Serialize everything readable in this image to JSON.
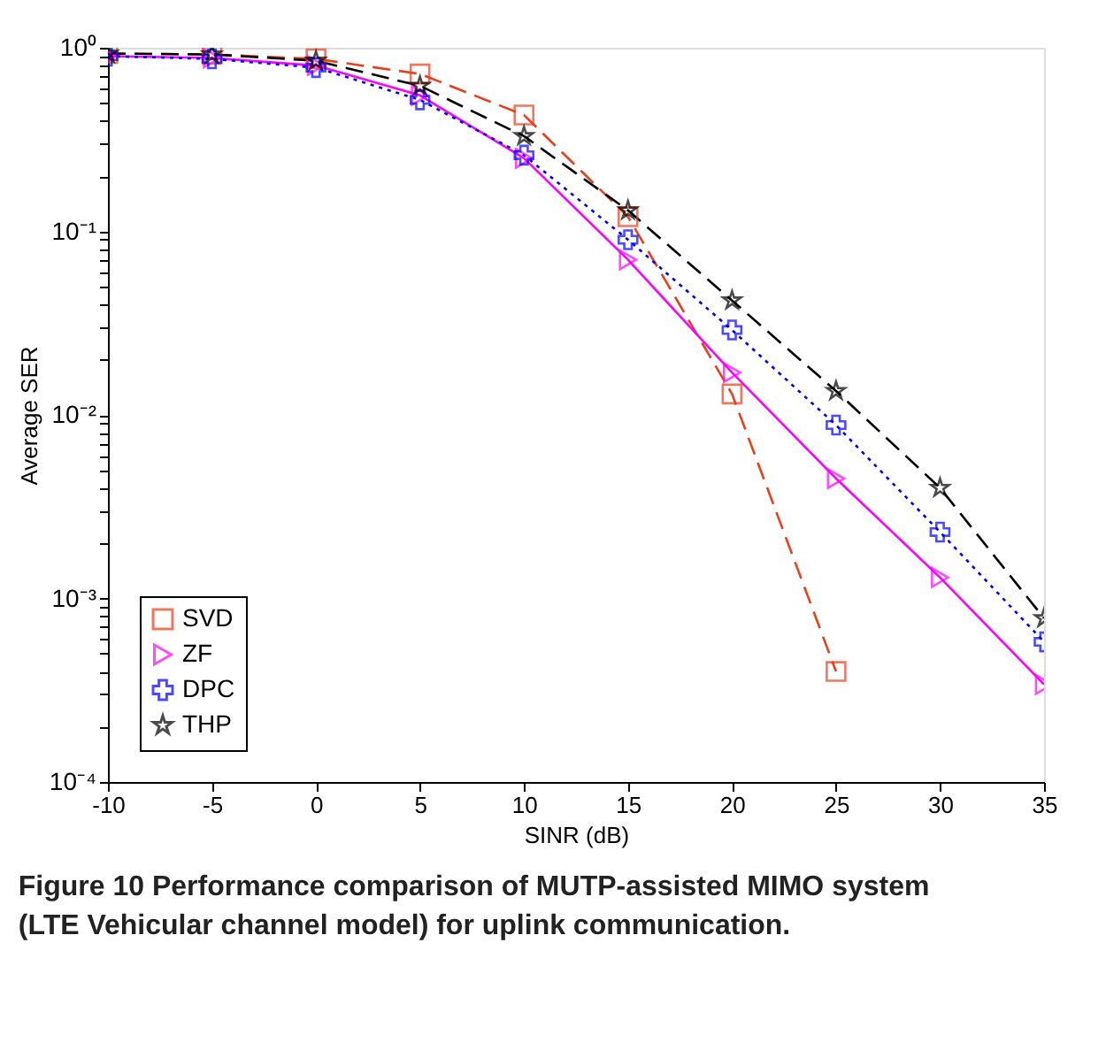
{
  "chart_data": {
    "type": "line",
    "xlabel": "SINR (dB)",
    "ylabel": "Average SER",
    "log": "y",
    "x": [
      -10,
      -5,
      0,
      5,
      10,
      15,
      20,
      25,
      30,
      35
    ],
    "xlim": [
      -10,
      35
    ],
    "xticks": [
      -10,
      -5,
      0,
      5,
      10,
      15,
      20,
      25,
      30,
      35
    ],
    "ylim": [
      0.0001,
      1
    ],
    "yticks": [
      {
        "value": 0.0001,
        "label": "10⁻⁴"
      },
      {
        "value": 0.0002,
        "label": null
      },
      {
        "value": 0.0003,
        "label": null
      },
      {
        "value": 0.0004,
        "label": null
      },
      {
        "value": 0.0005,
        "label": null
      },
      {
        "value": 0.0006,
        "label": null
      },
      {
        "value": 0.0007,
        "label": null
      },
      {
        "value": 0.0008,
        "label": null
      },
      {
        "value": 0.0009,
        "label": null
      },
      {
        "value": 0.001,
        "label": "10⁻³"
      },
      {
        "value": 0.002,
        "label": null
      },
      {
        "value": 0.003,
        "label": null
      },
      {
        "value": 0.004,
        "label": null
      },
      {
        "value": 0.005,
        "label": null
      },
      {
        "value": 0.006,
        "label": null
      },
      {
        "value": 0.007,
        "label": null
      },
      {
        "value": 0.008,
        "label": null
      },
      {
        "value": 0.009,
        "label": null
      },
      {
        "value": 0.01,
        "label": "10⁻²"
      },
      {
        "value": 0.02,
        "label": null
      },
      {
        "value": 0.03,
        "label": null
      },
      {
        "value": 0.04,
        "label": null
      },
      {
        "value": 0.05,
        "label": null
      },
      {
        "value": 0.06,
        "label": null
      },
      {
        "value": 0.07,
        "label": null
      },
      {
        "value": 0.08,
        "label": null
      },
      {
        "value": 0.09,
        "label": null
      },
      {
        "value": 0.1,
        "label": "10⁻¹"
      },
      {
        "value": 0.2,
        "label": null
      },
      {
        "value": 0.3,
        "label": null
      },
      {
        "value": 0.4,
        "label": null
      },
      {
        "value": 0.5,
        "label": null
      },
      {
        "value": 0.6,
        "label": null
      },
      {
        "value": 0.7,
        "label": null
      },
      {
        "value": 0.8,
        "label": null
      },
      {
        "value": 0.9,
        "label": null
      },
      {
        "value": 1,
        "label": "10⁰"
      }
    ],
    "grid": false,
    "legend": "bottom left",
    "series": [
      {
        "name": "SVD",
        "color": "#e8401c",
        "marker": "square",
        "line_style": "dashed",
        "values": [
          0.93,
          0.92,
          0.87,
          0.72,
          0.43,
          0.12,
          0.013,
          0.0004,
          null,
          null
        ]
      },
      {
        "name": "ZF",
        "color": "#ff00ff",
        "marker": "triangle",
        "line_style": "solid",
        "values": [
          0.9,
          0.88,
          0.8,
          0.55,
          0.25,
          0.07,
          0.017,
          0.0045,
          0.0013,
          0.00034
        ]
      },
      {
        "name": "DPC",
        "color": "#0000ff",
        "marker": "cross",
        "line_style": "dotted",
        "values": [
          0.9,
          0.87,
          0.78,
          0.52,
          0.26,
          0.09,
          0.029,
          0.0088,
          0.0023,
          0.00058
        ]
      },
      {
        "name": "THP",
        "color": "#000000",
        "marker": "star",
        "line_style": "dashed",
        "values": [
          0.93,
          0.92,
          0.85,
          0.62,
          0.33,
          0.13,
          0.042,
          0.0135,
          0.004,
          0.00078
        ]
      }
    ],
    "annotations": [
      "Figure 10 Performance comparison of MUTP-assisted MIMO system (LTE Vehicular channel model) for uplink communication."
    ]
  }
}
